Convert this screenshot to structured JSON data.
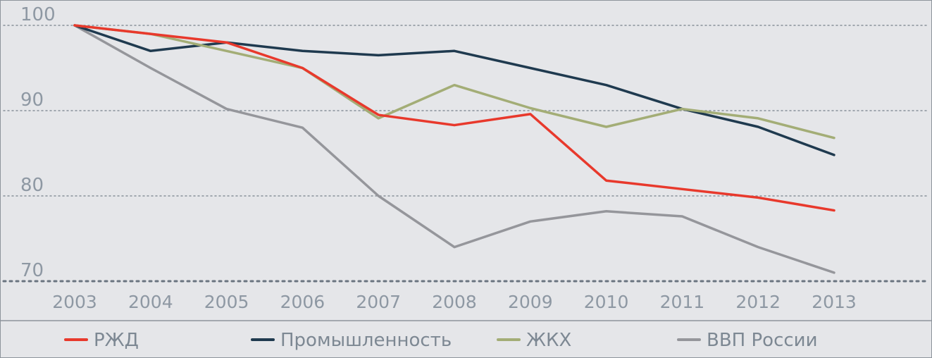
{
  "chart_data": {
    "type": "line",
    "title": "",
    "xlabel": "",
    "ylabel": "",
    "x": [
      "2003",
      "2004",
      "2005",
      "2006",
      "2007",
      "2008",
      "2009",
      "2010",
      "2011",
      "2012",
      "2013"
    ],
    "ylim": [
      70,
      100
    ],
    "yticks": [
      100,
      90,
      80,
      70
    ],
    "ytick_labels": [
      "100",
      "90",
      "80",
      "70"
    ],
    "grid": "horizontal dotted",
    "legend_position": "bottom",
    "series": [
      {
        "name": "РЖД",
        "color": "#e8392c",
        "values": [
          100,
          99,
          98,
          95,
          89.5,
          88.3,
          89.6,
          81.8,
          80.8,
          79.8,
          78.3
        ]
      },
      {
        "name": "Промышленность",
        "color": "#1f3a4f",
        "values": [
          100,
          97,
          98,
          97,
          96.5,
          97,
          95,
          93,
          90.2,
          88.1,
          84.8
        ]
      },
      {
        "name": "ЖКХ",
        "color": "#a3ad76",
        "values": [
          100,
          99,
          97,
          95,
          89.1,
          93,
          90.3,
          88.1,
          90.2,
          89.1,
          86.8
        ]
      },
      {
        "name": "ВВП России",
        "color": "#95969b",
        "values": [
          100,
          95,
          90.2,
          88,
          80,
          74,
          77,
          78.2,
          77.6,
          74,
          71
        ]
      }
    ]
  }
}
